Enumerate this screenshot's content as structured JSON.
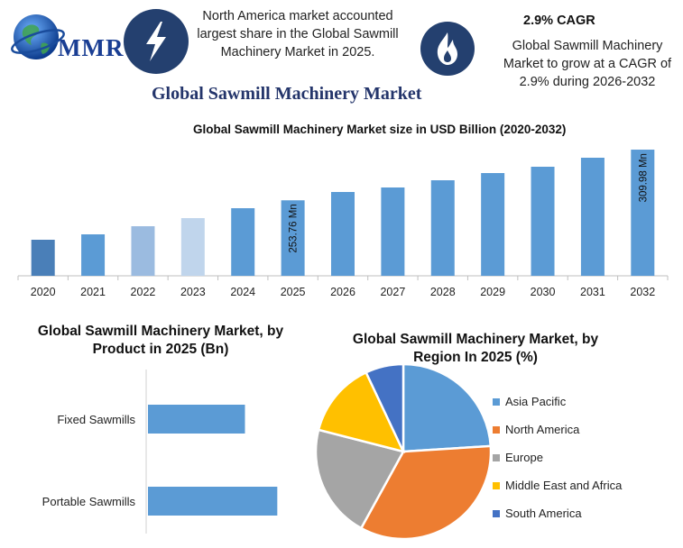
{
  "header": {
    "logo_text": "MMR",
    "logo_icon": "globe-icon",
    "info1_icon": "lightning-bolt-icon",
    "info1_text": "North America market accounted largest share in the Global Sawmill Machinery Market in 2025.",
    "info2_icon": "flame-icon",
    "info2_heading": "2.9% CAGR",
    "info2_text": "Global Sawmill Machinery Market to grow at a CAGR of 2.9% during 2026-2032"
  },
  "main_title": "Global Sawmill Machinery Market",
  "chart_data": [
    {
      "type": "bar",
      "title": "Global Sawmill Machinery Market size in USD Billion (2020-2032)",
      "categories": [
        "2020",
        "2021",
        "2022",
        "2023",
        "2024",
        "2025",
        "2026",
        "2027",
        "2028",
        "2029",
        "2030",
        "2031",
        "2032"
      ],
      "values": [
        210,
        216,
        225,
        234,
        245,
        253.76,
        263,
        268,
        276,
        284,
        291,
        301,
        309.98
      ],
      "ylim": [
        170,
        320
      ],
      "colors": [
        "#4a7fb8",
        "#5b9bd5",
        "#9bbbe0",
        "#c0d5ec",
        "#5b9bd5",
        "#5b9bd5",
        "#5b9bd5",
        "#5b9bd5",
        "#5b9bd5",
        "#5b9bd5",
        "#5b9bd5",
        "#5b9bd5",
        "#5b9bd5"
      ],
      "annotations": [
        {
          "category": "2025",
          "text": "253.76 Mn"
        },
        {
          "category": "2032",
          "text": "309.98 Mn"
        }
      ]
    },
    {
      "type": "bar",
      "orientation": "horizontal",
      "title": "Global Sawmill Machinery Market, by Product in 2025 (Bn)",
      "categories": [
        "Fixed Sawmills",
        "Portable Sawmills"
      ],
      "values": [
        0.3,
        0.4
      ],
      "xlim": [
        0,
        0.6
      ],
      "color": "#5b9bd5"
    },
    {
      "type": "pie",
      "title": "Global Sawmill Machinery Market, by Region In 2025 (%)",
      "labels": [
        "Asia Pacific",
        "North America",
        "Europe",
        "Middle East and Africa",
        "South America"
      ],
      "values": [
        24,
        34,
        21,
        14,
        7
      ],
      "colors": [
        "#5b9bd5",
        "#ed7d31",
        "#a5a5a5",
        "#ffc000",
        "#4472c4"
      ],
      "legend_position": "right"
    }
  ]
}
